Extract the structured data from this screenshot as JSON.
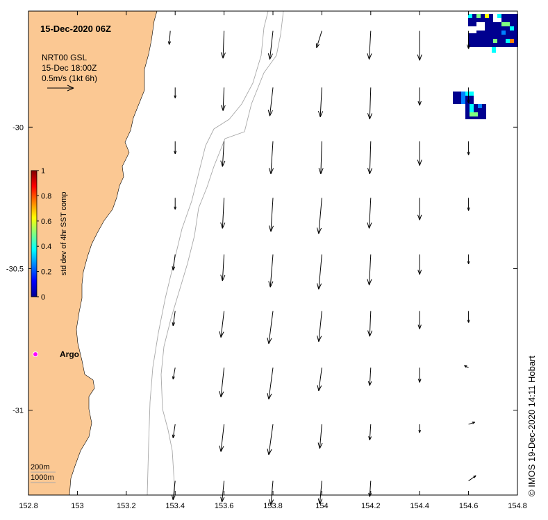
{
  "title": "15-Dec-2020 06Z",
  "current_legend": {
    "source": "NRT00 GSL",
    "time": "15-Dec 18:00Z",
    "scale": "0.5m/s (1kt 6h)"
  },
  "colorbar": {
    "label": "std dev of 4hr SST comp",
    "ticks": [
      "1",
      "0.8",
      "0.6",
      "0.4",
      "0.2",
      "0"
    ],
    "colors": [
      "#00008f",
      "#0000ff",
      "#0080ff",
      "#00ffff",
      "#80ff80",
      "#ffff00",
      "#ff8000",
      "#ff0000",
      "#800000"
    ]
  },
  "argo": {
    "label": "Argo",
    "color": "#ff00ff"
  },
  "bathymetry": {
    "line1": "200m",
    "line2": "1000m"
  },
  "credit": "© IMOS 19-Dec-2020 14:11 Hobart",
  "colors": {
    "land": "#fbc893",
    "contour": "#a8a8a8",
    "arrow": "#000000"
  },
  "chart_data": {
    "type": "vector-field",
    "x_ticks": [
      "152.8",
      "153",
      "153.2",
      "153.4",
      "153.6",
      "153.8",
      "154",
      "154.2",
      "154.4",
      "154.6",
      "154.8"
    ],
    "y_ticks": [
      "-30",
      "-30.5",
      "-31"
    ],
    "xlim": [
      152.8,
      154.8
    ],
    "ylim": [
      -31.3,
      -29.59
    ],
    "argo_position": [
      152.83,
      -30.8
    ],
    "currents": [
      {
        "lon": 153.38,
        "lat": -29.66,
        "u": -0.02,
        "v": -0.26
      },
      {
        "lon": 153.6,
        "lat": -29.66,
        "u": -0.02,
        "v": -0.52
      },
      {
        "lon": 153.8,
        "lat": -29.66,
        "u": -0.06,
        "v": -0.54
      },
      {
        "lon": 154.0,
        "lat": -29.66,
        "u": -0.1,
        "v": -0.32
      },
      {
        "lon": 154.2,
        "lat": -29.66,
        "u": -0.03,
        "v": -0.54
      },
      {
        "lon": 154.4,
        "lat": -29.66,
        "u": 0.0,
        "v": -0.56
      },
      {
        "lon": 154.6,
        "lat": -29.66,
        "u": 0.0,
        "v": -0.34
      },
      {
        "lon": 153.4,
        "lat": -29.86,
        "u": 0.0,
        "v": -0.2
      },
      {
        "lon": 153.6,
        "lat": -29.86,
        "u": -0.02,
        "v": -0.44
      },
      {
        "lon": 153.8,
        "lat": -29.86,
        "u": -0.06,
        "v": -0.54
      },
      {
        "lon": 154.0,
        "lat": -29.86,
        "u": -0.03,
        "v": -0.56
      },
      {
        "lon": 154.2,
        "lat": -29.86,
        "u": -0.02,
        "v": -0.6
      },
      {
        "lon": 154.4,
        "lat": -29.86,
        "u": 0.0,
        "v": -0.34
      },
      {
        "lon": 154.6,
        "lat": -29.86,
        "u": 0.0,
        "v": -0.3
      },
      {
        "lon": 153.4,
        "lat": -30.05,
        "u": 0.0,
        "v": -0.24
      },
      {
        "lon": 153.6,
        "lat": -30.05,
        "u": -0.03,
        "v": -0.48
      },
      {
        "lon": 153.8,
        "lat": -30.05,
        "u": -0.04,
        "v": -0.62
      },
      {
        "lon": 154.0,
        "lat": -30.05,
        "u": -0.02,
        "v": -0.62
      },
      {
        "lon": 154.2,
        "lat": -30.05,
        "u": -0.02,
        "v": -0.62
      },
      {
        "lon": 154.4,
        "lat": -30.05,
        "u": 0.0,
        "v": -0.46
      },
      {
        "lon": 154.6,
        "lat": -30.05,
        "u": 0.0,
        "v": -0.26
      },
      {
        "lon": 153.4,
        "lat": -30.25,
        "u": 0.0,
        "v": -0.22
      },
      {
        "lon": 153.6,
        "lat": -30.25,
        "u": -0.03,
        "v": -0.58
      },
      {
        "lon": 153.8,
        "lat": -30.25,
        "u": -0.04,
        "v": -0.64
      },
      {
        "lon": 154.0,
        "lat": -30.25,
        "u": -0.06,
        "v": -0.68
      },
      {
        "lon": 154.2,
        "lat": -30.25,
        "u": -0.03,
        "v": -0.58
      },
      {
        "lon": 154.4,
        "lat": -30.25,
        "u": 0.0,
        "v": -0.42
      },
      {
        "lon": 154.6,
        "lat": -30.25,
        "u": 0.0,
        "v": -0.24
      },
      {
        "lon": 153.4,
        "lat": -30.45,
        "u": -0.04,
        "v": -0.3
      },
      {
        "lon": 153.6,
        "lat": -30.45,
        "u": -0.03,
        "v": -0.5
      },
      {
        "lon": 153.8,
        "lat": -30.45,
        "u": -0.05,
        "v": -0.62
      },
      {
        "lon": 154.0,
        "lat": -30.45,
        "u": -0.06,
        "v": -0.66
      },
      {
        "lon": 154.2,
        "lat": -30.45,
        "u": -0.03,
        "v": -0.58
      },
      {
        "lon": 154.4,
        "lat": -30.45,
        "u": 0.0,
        "v": -0.38
      },
      {
        "lon": 154.6,
        "lat": -30.45,
        "u": 0.0,
        "v": -0.18
      },
      {
        "lon": 153.4,
        "lat": -30.65,
        "u": -0.04,
        "v": -0.28
      },
      {
        "lon": 153.6,
        "lat": -30.65,
        "u": -0.06,
        "v": -0.5
      },
      {
        "lon": 153.8,
        "lat": -30.65,
        "u": -0.08,
        "v": -0.62
      },
      {
        "lon": 154.0,
        "lat": -30.65,
        "u": -0.06,
        "v": -0.58
      },
      {
        "lon": 154.2,
        "lat": -30.65,
        "u": -0.02,
        "v": -0.48
      },
      {
        "lon": 154.4,
        "lat": -30.65,
        "u": 0.0,
        "v": -0.34
      },
      {
        "lon": 154.6,
        "lat": -30.65,
        "u": 0.0,
        "v": -0.22
      },
      {
        "lon": 153.4,
        "lat": -30.85,
        "u": -0.04,
        "v": -0.22
      },
      {
        "lon": 153.6,
        "lat": -30.85,
        "u": -0.06,
        "v": -0.56
      },
      {
        "lon": 153.8,
        "lat": -30.85,
        "u": -0.08,
        "v": -0.6
      },
      {
        "lon": 154.0,
        "lat": -30.85,
        "u": -0.06,
        "v": -0.44
      },
      {
        "lon": 154.2,
        "lat": -30.85,
        "u": -0.02,
        "v": -0.34
      },
      {
        "lon": 154.4,
        "lat": -30.85,
        "u": 0.0,
        "v": -0.28
      },
      {
        "lon": 154.6,
        "lat": -30.85,
        "u": -0.08,
        "v": 0.04
      },
      {
        "lon": 153.4,
        "lat": -31.05,
        "u": -0.04,
        "v": -0.26
      },
      {
        "lon": 153.6,
        "lat": -31.05,
        "u": -0.06,
        "v": -0.52
      },
      {
        "lon": 153.8,
        "lat": -31.05,
        "u": -0.08,
        "v": -0.58
      },
      {
        "lon": 154.0,
        "lat": -31.05,
        "u": -0.04,
        "v": -0.46
      },
      {
        "lon": 154.2,
        "lat": -31.05,
        "u": -0.02,
        "v": -0.3
      },
      {
        "lon": 154.4,
        "lat": -31.05,
        "u": 0.0,
        "v": -0.16
      },
      {
        "lon": 154.6,
        "lat": -31.05,
        "u": 0.12,
        "v": 0.04
      },
      {
        "lon": 153.4,
        "lat": -31.25,
        "u": -0.04,
        "v": -0.36
      },
      {
        "lon": 153.6,
        "lat": -31.25,
        "u": -0.04,
        "v": -0.4
      },
      {
        "lon": 153.8,
        "lat": -31.25,
        "u": -0.04,
        "v": -0.46
      },
      {
        "lon": 154.0,
        "lat": -31.25,
        "u": -0.04,
        "v": -0.44
      },
      {
        "lon": 154.2,
        "lat": -31.25,
        "u": -0.02,
        "v": -0.3
      },
      {
        "lon": 154.6,
        "lat": -31.25,
        "u": 0.14,
        "v": 0.1
      }
    ]
  }
}
